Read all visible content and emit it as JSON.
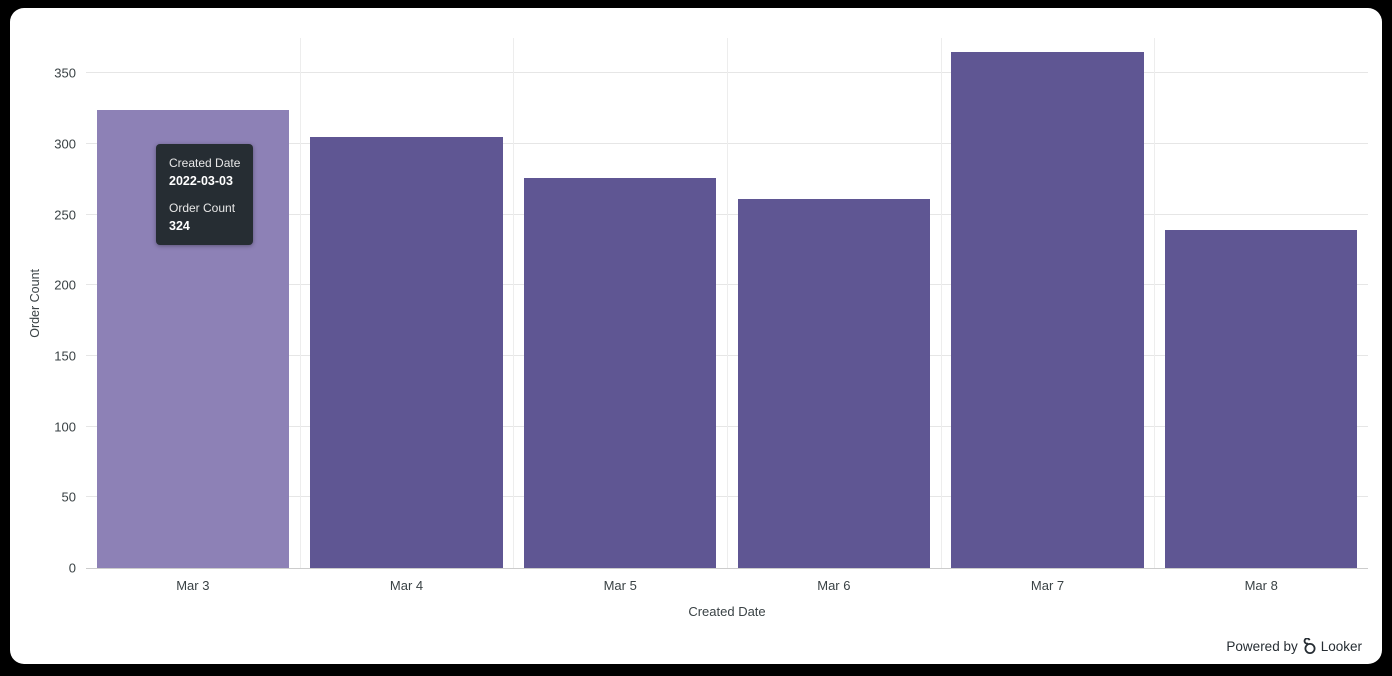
{
  "chart_data": {
    "type": "bar",
    "title": "",
    "xlabel": "Created Date",
    "ylabel": "Order Count",
    "categories": [
      "Mar 3",
      "Mar 4",
      "Mar 5",
      "Mar 6",
      "Mar 7",
      "Mar 8"
    ],
    "values": [
      324,
      305,
      276,
      261,
      365,
      239
    ],
    "ylim": [
      0,
      375
    ],
    "yticks": [
      0,
      50,
      100,
      150,
      200,
      250,
      300,
      350
    ],
    "grid": true,
    "legend": "none",
    "bar_color": "#5f5693",
    "highlight_color": "#8d81b6",
    "highlighted_index": 0
  },
  "tooltip": {
    "date_label": "Created Date",
    "date_value": "2022-03-03",
    "count_label": "Order Count",
    "count_value": "324"
  },
  "footer": {
    "powered_by": "Powered by",
    "brand": "Looker"
  },
  "colors": {
    "page_background": "#000000",
    "panel_background": "#ffffff",
    "tooltip_background": "#262d33",
    "axis_text": "#3a4245",
    "gridline": "#e6e6e6"
  }
}
